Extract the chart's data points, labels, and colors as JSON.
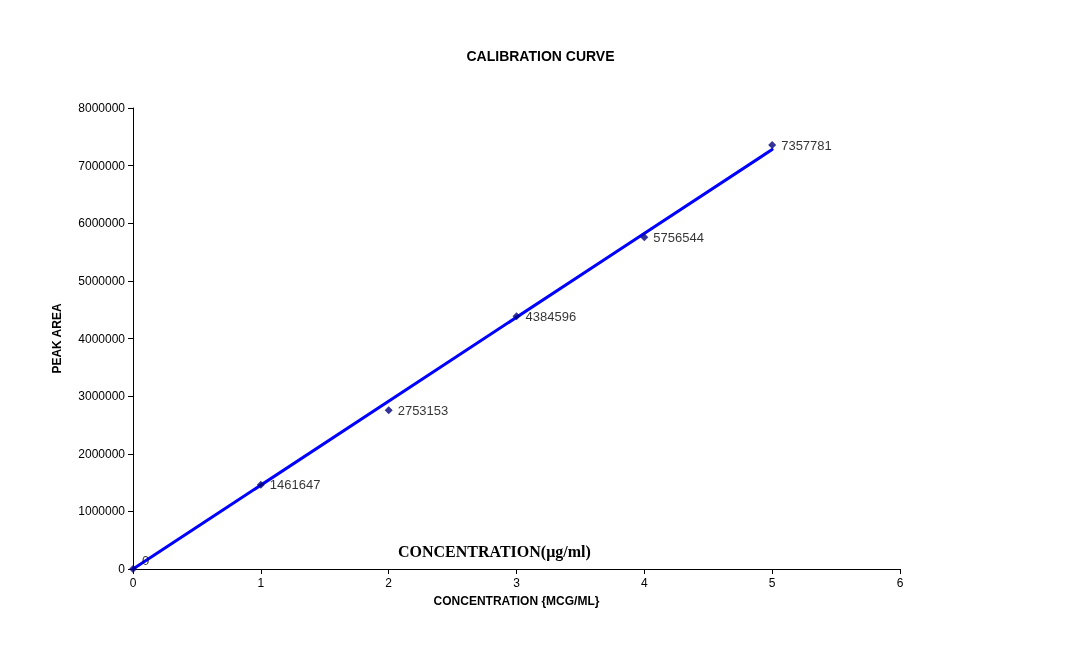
{
  "chart_data": {
    "type": "scatter",
    "title": "CALIBRATION CURVE",
    "xlabel": "CONCENTRATION {MCG/ML}",
    "ylabel": "PEAK AREA",
    "annotations": [
      "CONCENTRATION(μg/ml)"
    ],
    "xlim": [
      0,
      6
    ],
    "xticks": [
      0,
      1,
      2,
      3,
      4,
      5,
      6
    ],
    "ylim": [
      0,
      8000000
    ],
    "yticks": [
      0,
      1000000,
      2000000,
      3000000,
      4000000,
      5000000,
      6000000,
      7000000,
      8000000
    ],
    "grid": false,
    "marker": "diamond",
    "series": [
      {
        "color": "#000080",
        "x": [
          0,
          1,
          2,
          3,
          4,
          5
        ],
        "values": [
          0,
          1461647,
          2753153,
          4384596,
          5756544,
          7357781
        ],
        "data_labels": true
      },
      {
        "type": "line",
        "color": "#0000ff",
        "x": [
          0,
          5
        ],
        "values": [
          0,
          7280000
        ],
        "line_style": "solid",
        "marker": "none"
      }
    ]
  }
}
